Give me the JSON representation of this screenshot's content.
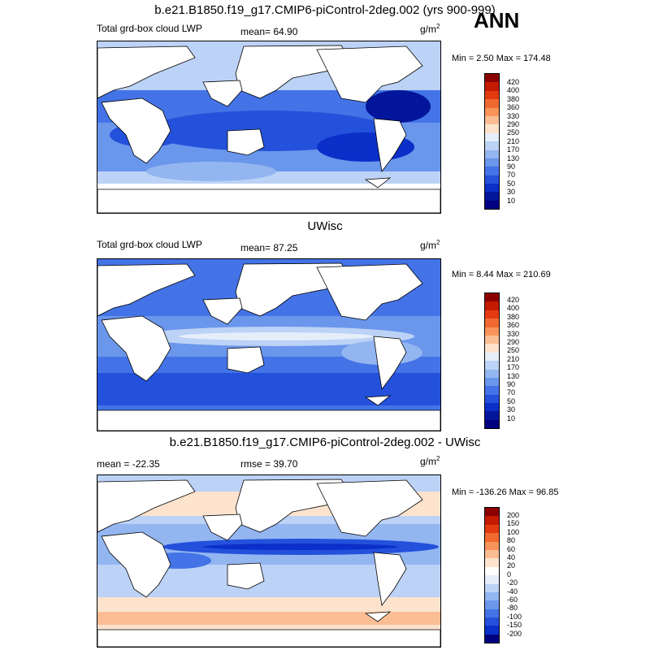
{
  "header": {
    "title_top": "b.e21.B1850.f19_g17.CMIP6-piControl-2deg.002 (yrs 900-999)",
    "season": "ANN"
  },
  "panels": [
    {
      "title": "b.e21.B1850.f19_g17.CMIP6-piControl-2deg.002 (yrs 900-999)",
      "left_label": "Total grd-box cloud LWP",
      "stat_label": "mean=  64.90",
      "extra_label": "",
      "unit_base": "g/m",
      "unit_sup": "2",
      "minmax": "Min =   2.50 Max = 174.48",
      "levels": [
        "420",
        "400",
        "380",
        "360",
        "330",
        "290",
        "250",
        "210",
        "170",
        "130",
        "90",
        "70",
        "50",
        "30",
        "10"
      ],
      "colors": [
        "#8b0000",
        "#c41a00",
        "#e33a12",
        "#f06a30",
        "#f8945a",
        "#fbbd93",
        "#fde3cd",
        "#e6eefa",
        "#bcd2f6",
        "#93b6f1",
        "#6a96ec",
        "#4373e6",
        "#2451db",
        "#0b2fc9",
        "#02159b",
        "#000080"
      ]
    },
    {
      "title": "UWisc",
      "left_label": "Total grd-box cloud LWP",
      "stat_label": "mean=  87.25",
      "extra_label": "",
      "unit_base": "g/m",
      "unit_sup": "2",
      "minmax": "Min =   8.44 Max = 210.69",
      "levels": [
        "420",
        "400",
        "380",
        "360",
        "330",
        "290",
        "250",
        "210",
        "170",
        "130",
        "90",
        "70",
        "50",
        "30",
        "10"
      ],
      "colors": [
        "#8b0000",
        "#c41a00",
        "#e33a12",
        "#f06a30",
        "#f8945a",
        "#fbbd93",
        "#fde3cd",
        "#e6eefa",
        "#bcd2f6",
        "#93b6f1",
        "#6a96ec",
        "#4373e6",
        "#2451db",
        "#0b2fc9",
        "#02159b",
        "#000080"
      ]
    },
    {
      "title": "b.e21.B1850.f19_g17.CMIP6-piControl-2deg.002 - UWisc",
      "left_label": "mean = -22.35",
      "stat_label": "rmse =  39.70",
      "extra_label": "",
      "unit_base": "g/m",
      "unit_sup": "2",
      "minmax": "Min = -136.26 Max =  96.85",
      "levels": [
        "200",
        "150",
        "100",
        "80",
        "60",
        "40",
        "20",
        "0",
        "-20",
        "-40",
        "-60",
        "-80",
        "-100",
        "-150",
        "-200"
      ],
      "colors": [
        "#8b0000",
        "#c41a00",
        "#e33a12",
        "#f06a30",
        "#f8945a",
        "#fbbd93",
        "#fde3cd",
        "#ffffff",
        "#e6eefa",
        "#bcd2f6",
        "#93b6f1",
        "#6a96ec",
        "#4373e6",
        "#2451db",
        "#0b2fc9",
        "#000080"
      ]
    }
  ]
}
